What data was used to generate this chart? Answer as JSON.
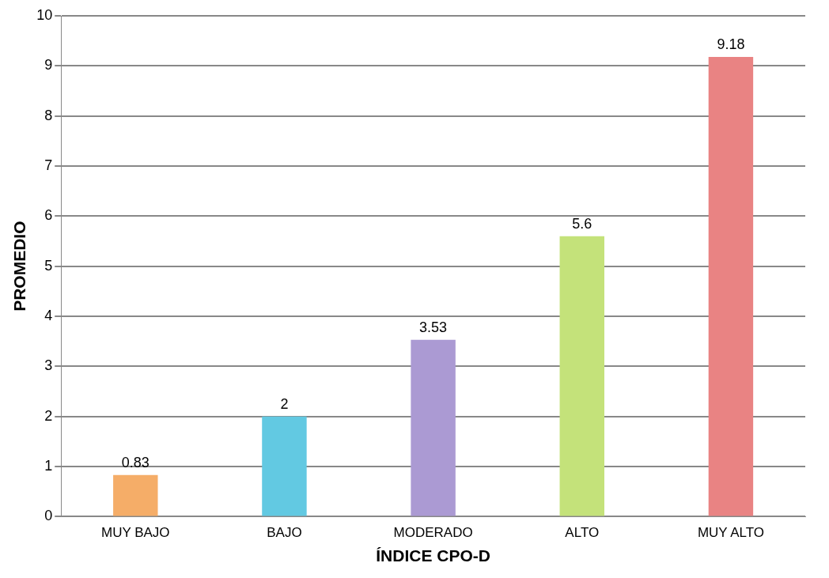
{
  "chart_data": {
    "type": "bar",
    "xlabel": "ÍNDICE CPO-D",
    "ylabel": "PROMEDIO",
    "categories": [
      "MUY BAJO",
      "BAJO",
      "MODERADO",
      "ALTO",
      "MUY ALTO"
    ],
    "values": [
      0.83,
      2,
      3.53,
      5.6,
      9.18
    ],
    "colors": [
      "#f5ad68",
      "#62c9e2",
      "#ab9ad3",
      "#c4e27a",
      "#e98383"
    ],
    "ylim": [
      0,
      10
    ],
    "yticks": [
      0,
      1,
      2,
      3,
      4,
      5,
      6,
      7,
      8,
      9,
      10
    ],
    "grid": "y",
    "data_labels": true,
    "legend": false
  }
}
